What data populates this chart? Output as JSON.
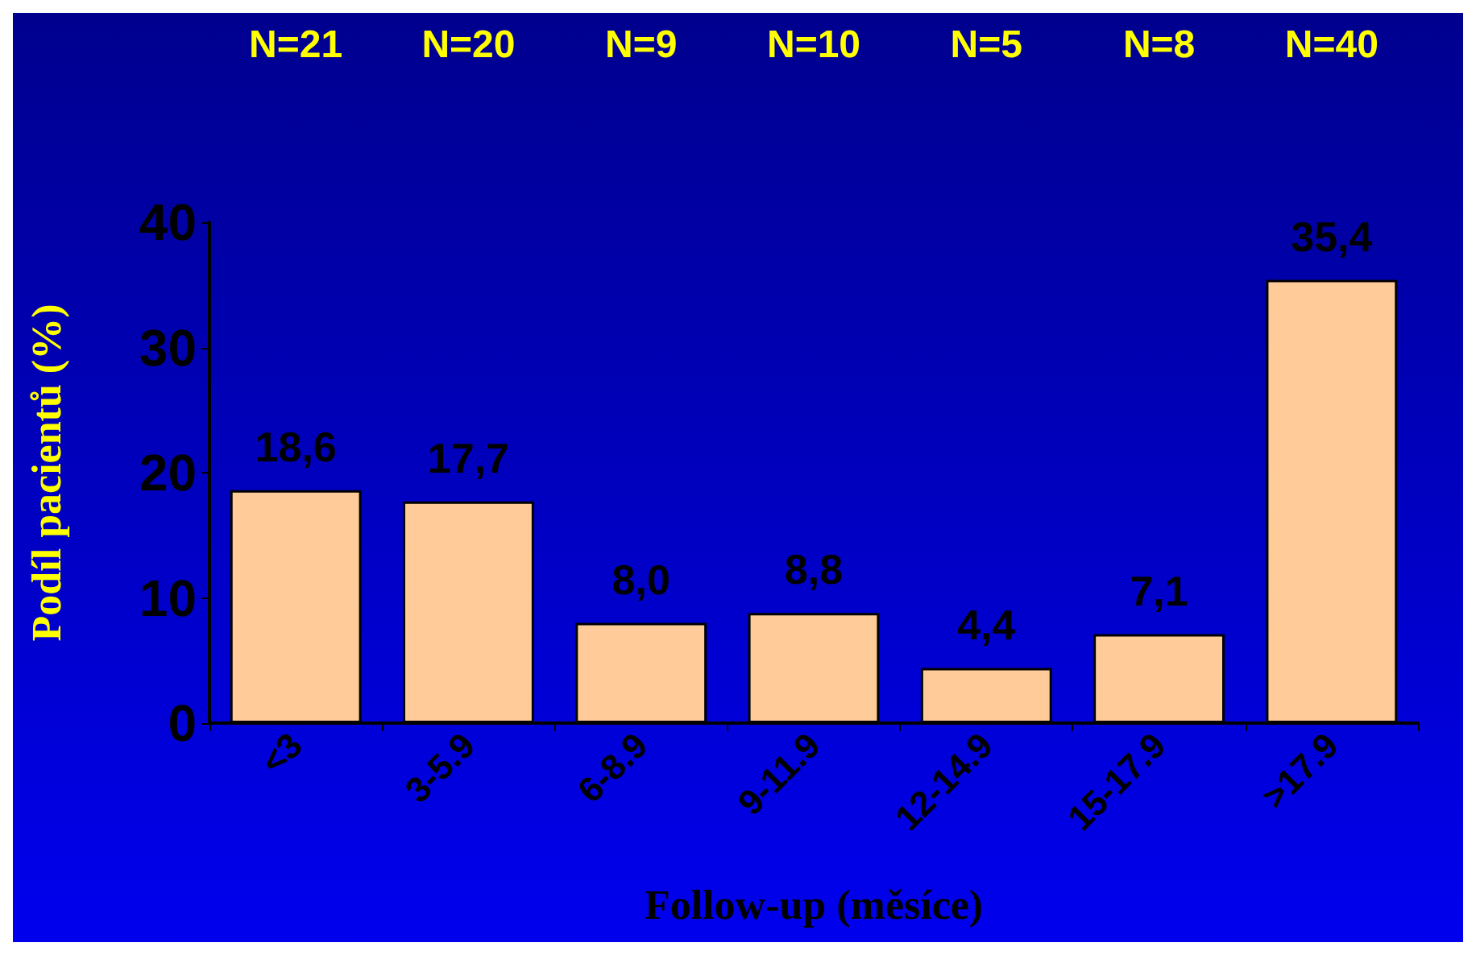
{
  "chart_data": {
    "type": "bar",
    "xlabel": "Follow-up (měsíce)",
    "ylabel": "Podíl pacientů (%)",
    "categories": [
      "<3",
      "3-5.9",
      "6-8.9",
      "9-11.9",
      "12-14.9",
      "15-17.9",
      ">17.9"
    ],
    "values": [
      18.6,
      17.7,
      8.0,
      8.8,
      4.4,
      7.1,
      35.4
    ],
    "value_labels": [
      "18,6",
      "17,7",
      "8,0",
      "8,8",
      "4,4",
      "7,1",
      "35,4"
    ],
    "color": "#ffcc99",
    "ylim": [
      0,
      40
    ],
    "yticks": [
      0,
      10,
      20,
      30,
      40
    ],
    "grid": false,
    "annotations": [
      "N=21",
      "N=20",
      "N=9",
      "N=10",
      "N=5",
      "N=8",
      "N=40"
    ]
  }
}
